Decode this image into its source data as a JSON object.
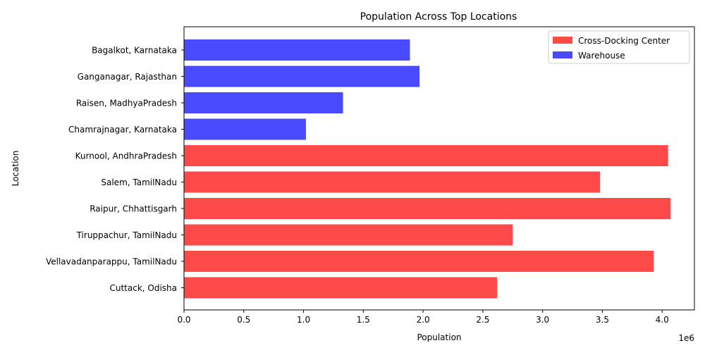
{
  "chart_data": {
    "type": "bar",
    "orientation": "horizontal",
    "title": "Population Across Top Locations",
    "xlabel": "Population",
    "ylabel": "Location",
    "x_offset_label": "1e6",
    "xlim": [
      0,
      4270000
    ],
    "xticks": [
      0,
      500000,
      1000000,
      1500000,
      2000000,
      2500000,
      3000000,
      3500000,
      4000000
    ],
    "xtick_labels": [
      "0.0",
      "0.5",
      "1.0",
      "1.5",
      "2.0",
      "2.5",
      "3.0",
      "3.5",
      "4.0"
    ],
    "categories": [
      "Bagalkot, Karnataka",
      "Ganganagar, Rajasthan",
      "Raisen, MadhyaPradesh",
      "Chamrajnagar, Karnataka",
      "Kurnool, AndhraPradesh",
      "Salem, TamilNadu",
      "Raipur, Chhattisgarh",
      "Tiruppachur, TamilNadu",
      "Vellavadanparappu, TamilNadu",
      "Cuttack, Odisha"
    ],
    "values": [
      1890000,
      1970000,
      1330000,
      1020000,
      4050000,
      3480000,
      4070000,
      2750000,
      3930000,
      2620000
    ],
    "bar_types": [
      "Warehouse",
      "Warehouse",
      "Warehouse",
      "Warehouse",
      "Cross-Docking Center",
      "Cross-Docking Center",
      "Cross-Docking Center",
      "Cross-Docking Center",
      "Cross-Docking Center",
      "Cross-Docking Center"
    ],
    "legend": [
      {
        "name": "Cross-Docking Center",
        "color": "#ff4a4a"
      },
      {
        "name": "Warehouse",
        "color": "#4a4aff"
      }
    ],
    "legend_position": "top-right",
    "grid": false
  }
}
